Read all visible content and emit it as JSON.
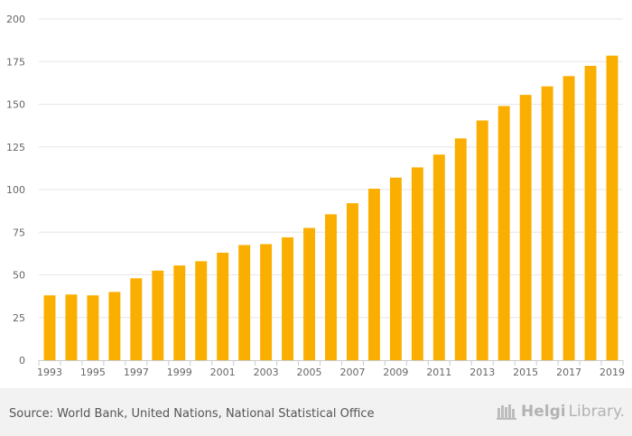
{
  "chart_data": {
    "type": "bar",
    "categories": [
      "1993",
      "1994",
      "1995",
      "1996",
      "1997",
      "1998",
      "1999",
      "2000",
      "2001",
      "2002",
      "2003",
      "2004",
      "2005",
      "2006",
      "2007",
      "2008",
      "2009",
      "2010",
      "2011",
      "2012",
      "2013",
      "2014",
      "2015",
      "2016",
      "2017",
      "2018",
      "2019"
    ],
    "values": [
      38,
      38.5,
      38,
      40,
      48,
      52.5,
      55.5,
      58,
      63,
      67.5,
      68,
      72,
      77.5,
      85.5,
      92,
      100.5,
      107,
      113,
      120.5,
      130,
      140.5,
      149,
      155.5,
      160.5,
      166.5,
      172.5,
      178.5
    ],
    "x_tick_labels": [
      "1993",
      "1995",
      "1997",
      "1999",
      "2001",
      "2003",
      "2005",
      "2007",
      "2009",
      "2011",
      "2013",
      "2015",
      "2017",
      "2019"
    ],
    "y_ticks": [
      0,
      25,
      50,
      75,
      100,
      125,
      150,
      175,
      200
    ],
    "ylim": [
      0,
      200
    ],
    "title": "",
    "xlabel": "",
    "ylabel": "",
    "grid": true,
    "colors": {
      "bar": "#FAAF00",
      "grid": "#e6e6e6",
      "axis": "#cccccc",
      "tick_text": "#666666"
    }
  },
  "footer": {
    "source": "Source: World Bank, United Nations, National Statistical Office",
    "brand_bold": "Helgi",
    "brand_light": "Library."
  }
}
